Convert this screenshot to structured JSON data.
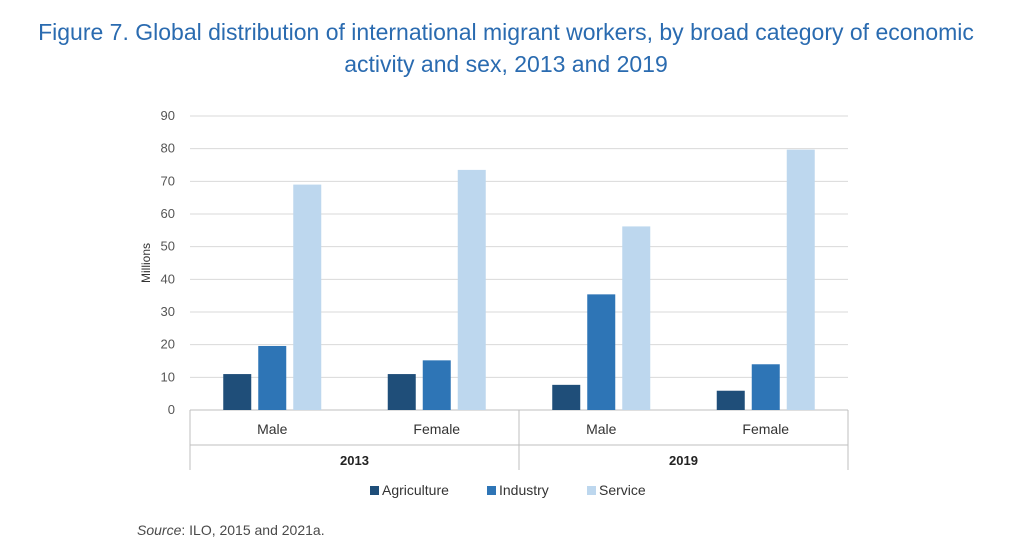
{
  "title_line1": "Figure 7. Global distribution of international migrant workers, by broad category of economic",
  "title_line2": "activity and sex, 2013 and 2019",
  "source_label": "Source",
  "source_text": ": ILO, 2015 and 2021a.",
  "colors": {
    "Agriculture": "#1f4e79",
    "Industry": "#2e75b6",
    "Service": "#bdd7ee"
  },
  "chart_data": {
    "type": "bar",
    "ylabel": "Millions",
    "ylim": [
      0,
      90
    ],
    "yticks": [
      0,
      10,
      20,
      30,
      40,
      50,
      60,
      70,
      80,
      90
    ],
    "grid": true,
    "legend_position": "bottom",
    "groups": [
      {
        "year": "2013",
        "categories": [
          "Male",
          "Female"
        ]
      },
      {
        "year": "2019",
        "categories": [
          "Male",
          "Female"
        ]
      }
    ],
    "x": [
      "2013 Male",
      "2013 Female",
      "2019 Male",
      "2019 Female"
    ],
    "series": [
      {
        "name": "Agriculture",
        "values": [
          11,
          11,
          7.7,
          5.9
        ]
      },
      {
        "name": "Industry",
        "values": [
          19.6,
          15.2,
          35.4,
          14
        ]
      },
      {
        "name": "Service",
        "values": [
          69,
          73.5,
          56.2,
          79.7
        ]
      }
    ]
  }
}
